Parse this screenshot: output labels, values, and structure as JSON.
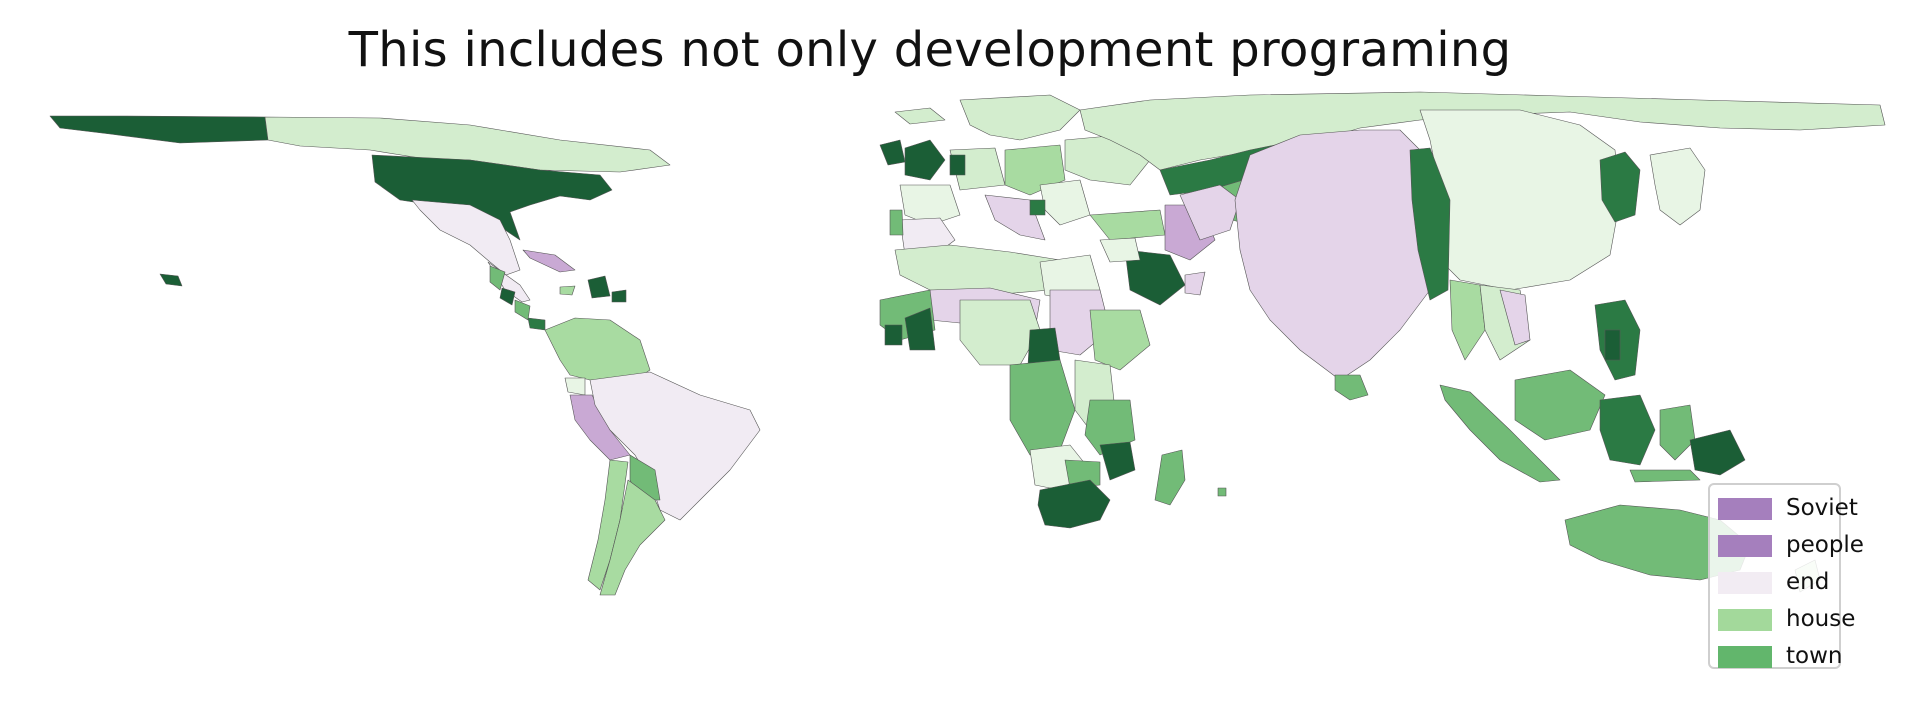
{
  "title": "This includes not only development programing",
  "legend": {
    "items": [
      {
        "label": "Soviet",
        "color": "#a57fbd"
      },
      {
        "label": "people",
        "color": "#a57fbd"
      },
      {
        "label": "end",
        "color": "#f2ecf3"
      },
      {
        "label": "house",
        "color": "#a3d99b"
      },
      {
        "label": "town",
        "color": "#62b66c"
      }
    ],
    "placement": "lower-right"
  },
  "palette": {
    "dark_green": "#1b5e36",
    "mid_dark_green": "#2b7a44",
    "green": "#72bb77",
    "light_green": "#a8dba1",
    "pale_green": "#d3edce",
    "faint_green": "#e8f5e5",
    "faint_purple": "#f1ebf3",
    "light_purple": "#e4d4e9",
    "purple": "#c9a9d4",
    "border": "#555555"
  }
}
